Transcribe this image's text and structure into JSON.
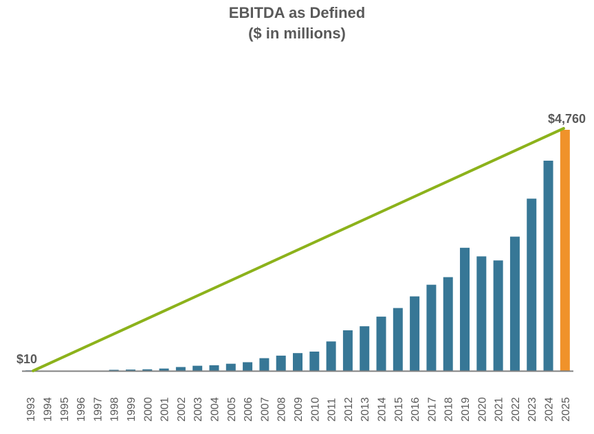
{
  "chart_data": {
    "type": "bar",
    "title": "EBITDA as Defined",
    "subtitle": "($ in millions)",
    "xlabel": "",
    "ylabel": "",
    "categories": [
      "1993",
      "1994",
      "1995",
      "1996",
      "1997",
      "1998",
      "1999",
      "2000",
      "2001",
      "2002",
      "2003",
      "2004",
      "2005",
      "2006",
      "2007",
      "2008",
      "2009",
      "2010",
      "2011",
      "2012",
      "2013",
      "2014",
      "2015",
      "2016",
      "2017",
      "2018",
      "2019",
      "2020",
      "2021",
      "2022",
      "2023",
      "2024",
      "2025"
    ],
    "values": [
      10,
      0,
      0,
      0,
      0,
      20,
      25,
      30,
      45,
      75,
      100,
      110,
      140,
      170,
      250,
      300,
      350,
      380,
      580,
      800,
      880,
      1070,
      1240,
      1470,
      1700,
      1850,
      2430,
      2260,
      2180,
      2650,
      3400,
      4150,
      4760
    ],
    "ylim": [
      0,
      4760
    ],
    "grid": false,
    "legend": "none",
    "highlight_category": "2025",
    "trend_line": {
      "from": "1993",
      "to": "2025"
    },
    "annotations": [
      {
        "category": "1993",
        "text": "$10"
      },
      {
        "category": "2025",
        "text": "$4,760"
      }
    ],
    "colors": {
      "bar": "#377796",
      "highlight_bar": "#f0922a",
      "trend_line": "#8cb21b",
      "axis": "#808080",
      "text": "#595959"
    }
  }
}
